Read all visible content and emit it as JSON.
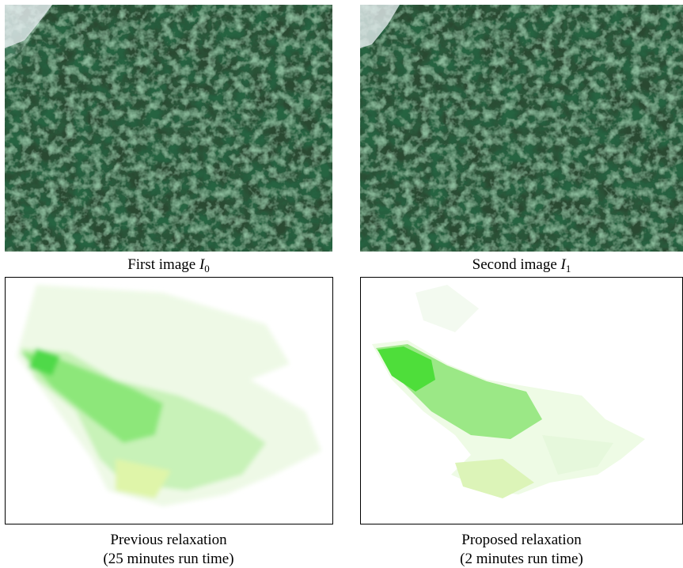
{
  "panels": [
    {
      "caption": {
        "text": "First image",
        "symbol": "I",
        "subscript": "0"
      }
    },
    {
      "caption": {
        "text": "Second image",
        "symbol": "I",
        "subscript": "1"
      }
    },
    {
      "caption": {
        "lines": [
          "Previous relaxation",
          "(25 minutes run time)"
        ]
      }
    },
    {
      "caption": {
        "lines": [
          "Proposed relaxation",
          "(2 minutes run time)"
        ]
      }
    }
  ]
}
